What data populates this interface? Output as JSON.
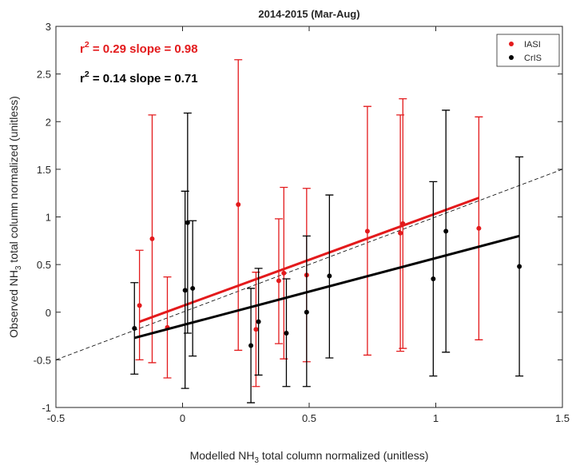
{
  "chart_data": {
    "type": "scatter",
    "title": "2014-2015 (Mar-Aug)",
    "xlabel": [
      "Modelled NH",
      "3",
      " total column normalized (unitless)"
    ],
    "ylabel": [
      "Observed NH",
      "3",
      " total column normalized (unitless)"
    ],
    "xlim": [
      -0.5,
      1.5
    ],
    "ylim": [
      -1,
      3
    ],
    "xticks": [
      -0.5,
      0,
      0.5,
      1,
      1.5
    ],
    "yticks": [
      -1,
      -0.5,
      0,
      0.5,
      1,
      1.5,
      2,
      2.5,
      3
    ],
    "grid": false,
    "legend": "upper right",
    "series": [
      {
        "name": "IASI",
        "color": "#e31a1c",
        "x": [
          -0.17,
          -0.12,
          -0.06,
          0.22,
          0.29,
          0.38,
          0.4,
          0.49,
          0.73,
          0.86,
          0.87,
          1.17
        ],
        "y": [
          0.07,
          0.77,
          -0.16,
          1.13,
          -0.18,
          0.33,
          0.41,
          0.39,
          0.85,
          0.83,
          0.93,
          0.88
        ],
        "low": [
          -0.5,
          -0.53,
          -0.69,
          -0.4,
          -0.78,
          -0.33,
          -0.49,
          -0.52,
          -0.45,
          -0.41,
          -0.38,
          -0.29
        ],
        "high": [
          0.65,
          2.07,
          0.37,
          2.65,
          0.42,
          0.98,
          1.31,
          1.3,
          2.16,
          2.07,
          2.24,
          2.05
        ],
        "fit": {
          "x": [
            -0.17,
            1.17
          ],
          "y": [
            -0.1,
            1.2
          ]
        },
        "annotation": [
          "r",
          "2",
          " = 0.29 slope = 0.98"
        ]
      },
      {
        "name": "CrIS",
        "color": "#000000",
        "x": [
          -0.19,
          0.01,
          0.02,
          0.04,
          0.27,
          0.3,
          0.41,
          0.49,
          0.58,
          0.99,
          1.04,
          1.33
        ],
        "y": [
          -0.17,
          0.23,
          0.94,
          0.25,
          -0.35,
          -0.1,
          -0.22,
          0.0,
          0.38,
          0.35,
          0.85,
          0.48
        ],
        "low": [
          -0.65,
          -0.8,
          -0.22,
          -0.46,
          -0.95,
          -0.66,
          -0.78,
          -0.78,
          -0.48,
          -0.67,
          -0.42,
          -0.67
        ],
        "high": [
          0.31,
          1.27,
          2.09,
          0.96,
          0.25,
          0.46,
          0.35,
          0.8,
          1.23,
          1.37,
          2.12,
          1.63
        ],
        "fit": {
          "x": [
            -0.19,
            1.33
          ],
          "y": [
            -0.27,
            0.8
          ]
        },
        "annotation": [
          "r",
          "2",
          " = 0.14 slope = 0.71"
        ]
      }
    ],
    "reference_line": {
      "x": [
        -0.5,
        1.5
      ],
      "y": [
        -0.5,
        1.5
      ]
    }
  }
}
